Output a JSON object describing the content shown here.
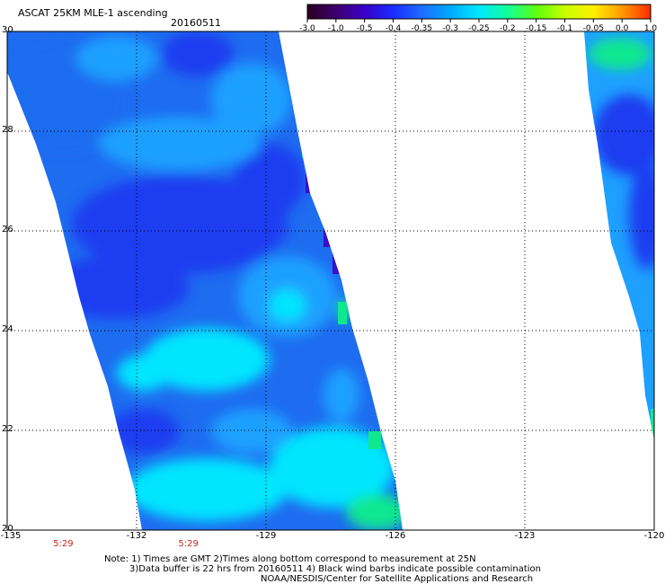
{
  "header": {
    "title": "ASCAT 25KM MLE-1 ascending",
    "date": "20160511"
  },
  "colorbar": {
    "labels": [
      "-3.0",
      "-1.0",
      "-0.5",
      "-0.4",
      "-0.35",
      "-0.3",
      "-0.25",
      "-0.2",
      "-0.15",
      "-0.1",
      "-0.05",
      "0.0",
      "1.0"
    ],
    "colors": [
      "#2b0020",
      "#3c006b",
      "#3a00c8",
      "#1a2cff",
      "#1e6cff",
      "#00aaff",
      "#00e8ff",
      "#10ff9a",
      "#5cff10",
      "#c8ff00",
      "#fff000",
      "#ff9a00",
      "#ff2a00"
    ]
  },
  "map": {
    "lon_range": [
      -135,
      -120
    ],
    "lat_range": [
      20,
      30
    ],
    "lat_ticks": [
      "30",
      "28",
      "26",
      "24",
      "22",
      "20"
    ],
    "lon_ticks": [
      "-135",
      "-132",
      "-129",
      "-126",
      "-123",
      "-120"
    ],
    "pass_times": [
      "5:29",
      "5:29"
    ],
    "colors": {
      "background": "#ffffff",
      "deep_blue": "#1e3cf0",
      "mid_blue": "#1e6cf0",
      "light_blue": "#1ea0ff",
      "cyan": "#00e6ff",
      "green": "#10e890",
      "violet": "#3a10c8"
    }
  },
  "notes": [
    "Note: 1) Times are GMT 2)Times along bottom correspond to measurement at 25N",
    "3)Data buffer is 22 hrs from 20160511 4) Black wind barbs indicate possible contamination",
    "NOAA/NESDIS/Center for Satellite Applications and Research"
  ]
}
